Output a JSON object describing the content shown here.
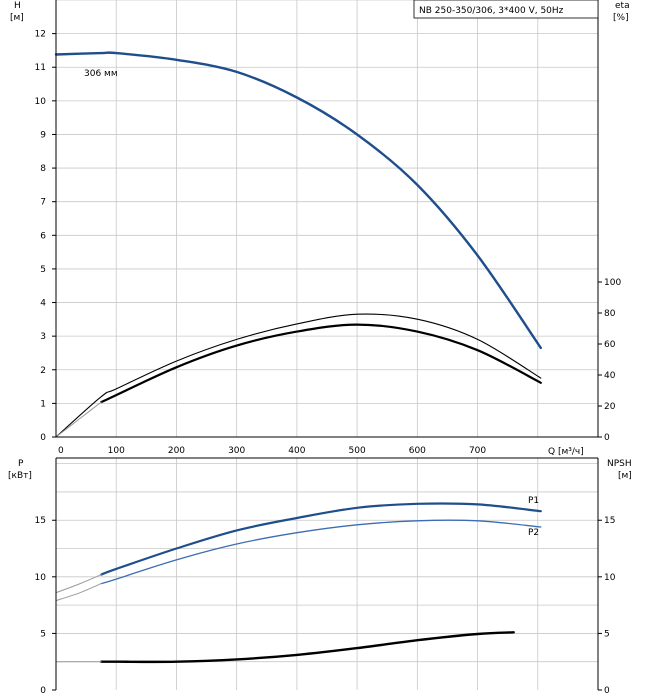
{
  "chart_data": [
    {
      "type": "line",
      "panel": "head_efficiency",
      "model_label": "NB 250-350/306, 3*400 V, 50Hz",
      "x_axis": {
        "label": "Q [м³/ч]",
        "ticks": [
          0,
          100,
          200,
          300,
          400,
          500,
          600,
          700
        ],
        "range": [
          0,
          900
        ]
      },
      "y_left": {
        "label_top": "H",
        "label_unit": "[м]",
        "ticks": [
          0,
          1,
          2,
          3,
          4,
          5,
          6,
          7,
          8,
          9,
          10,
          11,
          12
        ],
        "range": [
          0,
          13
        ]
      },
      "y_right": {
        "label_top": "eta",
        "label_unit": "[%]",
        "ticks": [
          0,
          20,
          40,
          60,
          80,
          100
        ],
        "range": [
          0,
          100
        ]
      },
      "grid": true,
      "series": [
        {
          "id": "H_306",
          "name": "306 мм",
          "axis": "left",
          "color": "#1f4e8c",
          "width": 2.4,
          "points": [
            [
              0,
              11.38
            ],
            [
              75,
              11.42
            ],
            [
              100,
              11.42
            ],
            [
              200,
              11.22
            ],
            [
              300,
              10.86
            ],
            [
              400,
              10.1
            ],
            [
              500,
              9.0
            ],
            [
              600,
              7.5
            ],
            [
              700,
              5.4
            ],
            [
              805,
              2.65
            ]
          ]
        },
        {
          "id": "eta_thin",
          "axis": "right",
          "color": "#000000",
          "width": 1.1,
          "points": [
            [
              0,
              0
            ],
            [
              75,
              26
            ],
            [
              100,
              31
            ],
            [
              200,
              49
            ],
            [
              300,
              63
            ],
            [
              400,
              73
            ],
            [
              500,
              79.2
            ],
            [
              600,
              76
            ],
            [
              700,
              63
            ],
            [
              805,
              38
            ]
          ]
        },
        {
          "id": "eta_thick",
          "axis": "right",
          "color": "#000000",
          "width": 2.2,
          "points": [
            [
              75,
              22.5
            ],
            [
              100,
              27
            ],
            [
              200,
              45
            ],
            [
              300,
              59
            ],
            [
              400,
              68
            ],
            [
              500,
              72.5
            ],
            [
              600,
              68
            ],
            [
              700,
              56
            ],
            [
              805,
              35
            ]
          ]
        },
        {
          "id": "eta_ext",
          "axis": "right",
          "color": "#9a9a9a",
          "width": 1,
          "points": [
            [
              0,
              0
            ],
            [
              40,
              12
            ],
            [
              75,
              22.5
            ]
          ]
        }
      ]
    },
    {
      "type": "line",
      "panel": "power_npsh",
      "x_axis": {
        "ticks": [
          0,
          100,
          200,
          300,
          400,
          500,
          600,
          700
        ],
        "range": [
          0,
          900
        ]
      },
      "y_left": {
        "label_top": "P",
        "label_unit": "[кВт]",
        "ticks": [
          0,
          5,
          10,
          15
        ],
        "range": [
          0,
          20.5
        ]
      },
      "y_right": {
        "label_top": "NPSH",
        "label_unit": "[м]",
        "ticks": [
          0,
          5,
          10,
          15
        ],
        "range": [
          0,
          20.5
        ]
      },
      "grid": true,
      "series": [
        {
          "id": "P1",
          "name": "P1",
          "axis": "left",
          "color": "#1f4e8c",
          "width": 2.2,
          "label_color": "#2a5aa0",
          "points": [
            [
              75,
              10.2
            ],
            [
              100,
              10.7
            ],
            [
              200,
              12.5
            ],
            [
              300,
              14.1
            ],
            [
              400,
              15.2
            ],
            [
              500,
              16.1
            ],
            [
              600,
              16.45
            ],
            [
              700,
              16.4
            ],
            [
              805,
              15.8
            ]
          ]
        },
        {
          "id": "P1_ext",
          "axis": "left",
          "color": "#9a9a9a",
          "width": 1,
          "points": [
            [
              0,
              8.6
            ],
            [
              40,
              9.4
            ],
            [
              75,
              10.2
            ]
          ]
        },
        {
          "id": "P2",
          "name": "P2",
          "axis": "left",
          "color": "#3b6db3",
          "width": 1.3,
          "label_color": "#2a5aa0",
          "points": [
            [
              75,
              9.4
            ],
            [
              100,
              9.8
            ],
            [
              200,
              11.5
            ],
            [
              300,
              12.9
            ],
            [
              400,
              13.9
            ],
            [
              500,
              14.6
            ],
            [
              600,
              14.95
            ],
            [
              700,
              14.95
            ],
            [
              805,
              14.4
            ]
          ]
        },
        {
          "id": "P2_ext",
          "axis": "left",
          "color": "#9a9a9a",
          "width": 1,
          "points": [
            [
              0,
              7.9
            ],
            [
              40,
              8.6
            ],
            [
              75,
              9.4
            ]
          ]
        },
        {
          "id": "NPSH",
          "axis": "right",
          "color": "#000000",
          "width": 2.4,
          "points": [
            [
              75,
              2.5
            ],
            [
              100,
              2.5
            ],
            [
              200,
              2.5
            ],
            [
              300,
              2.7
            ],
            [
              400,
              3.1
            ],
            [
              500,
              3.7
            ],
            [
              600,
              4.4
            ],
            [
              700,
              4.95
            ],
            [
              760,
              5.1
            ]
          ]
        },
        {
          "id": "NPSH_ext",
          "axis": "right",
          "color": "#9a9a9a",
          "width": 1,
          "points": [
            [
              0,
              2.5
            ],
            [
              75,
              2.5
            ]
          ]
        }
      ]
    }
  ]
}
